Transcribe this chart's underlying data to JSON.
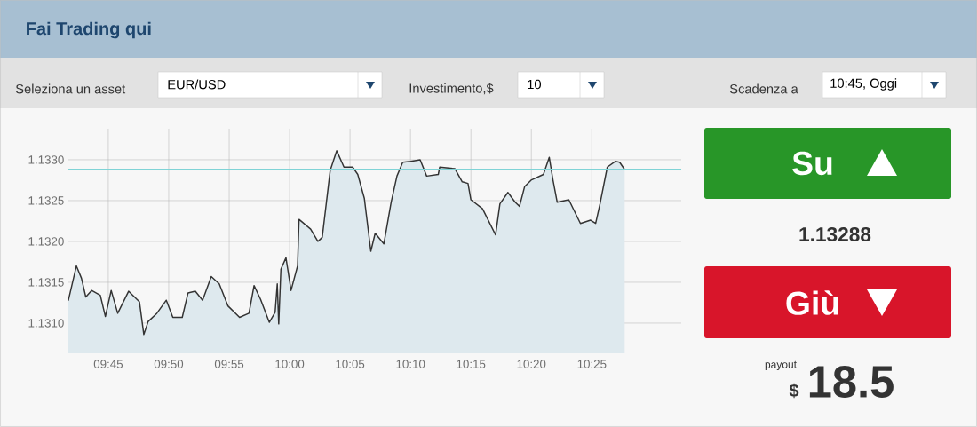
{
  "chart_data": {
    "type": "area",
    "title": "Fai Trading qui",
    "x": [
      9.695,
      9.706,
      9.713,
      9.719,
      9.727,
      9.739,
      9.746,
      9.754,
      9.763,
      9.778,
      9.793,
      9.799,
      9.805,
      9.817,
      9.83,
      9.839,
      9.852,
      9.86,
      9.87,
      9.88,
      9.892,
      9.903,
      9.915,
      9.931,
      9.944,
      9.951,
      9.96,
      9.972,
      9.98,
      9.983,
      9.985,
      9.988,
      9.995,
      10.002,
      10.011,
      10.013,
      10.021,
      10.029,
      10.039,
      10.045,
      10.056,
      10.065,
      10.075,
      10.087,
      10.094,
      10.103,
      10.112,
      10.118,
      10.13,
      10.14,
      10.148,
      10.156,
      10.167,
      10.18,
      10.189,
      10.205,
      10.207,
      10.228,
      10.238,
      10.246,
      10.25,
      10.266,
      10.284,
      10.29,
      10.301,
      10.311,
      10.317,
      10.324,
      10.333,
      10.35,
      10.358,
      10.363,
      10.369,
      10.385,
      10.401,
      10.415,
      10.422,
      10.428,
      10.438,
      10.449,
      10.455,
      10.462
    ],
    "values": [
      1.13128,
      1.1317,
      1.13155,
      1.13132,
      1.1314,
      1.13134,
      1.13108,
      1.1314,
      1.13112,
      1.13139,
      1.13126,
      1.13086,
      1.13102,
      1.13112,
      1.13128,
      1.13107,
      1.13107,
      1.13137,
      1.13139,
      1.13128,
      1.13157,
      1.13148,
      1.13121,
      1.13107,
      1.13112,
      1.13146,
      1.13129,
      1.13101,
      1.13113,
      1.13148,
      1.13099,
      1.13166,
      1.1318,
      1.1314,
      1.1317,
      1.13227,
      1.13221,
      1.13215,
      1.132,
      1.13205,
      1.13287,
      1.13311,
      1.13291,
      1.13291,
      1.13282,
      1.13253,
      1.13188,
      1.1321,
      1.13197,
      1.13248,
      1.1328,
      1.13297,
      1.13298,
      1.133,
      1.1328,
      1.13282,
      1.13291,
      1.13289,
      1.13273,
      1.13271,
      1.13251,
      1.1324,
      1.13208,
      1.13246,
      1.1326,
      1.13248,
      1.13243,
      1.13267,
      1.13275,
      1.13282,
      1.13303,
      1.13276,
      1.13248,
      1.13251,
      1.13222,
      1.13226,
      1.13222,
      1.13246,
      1.13291,
      1.13298,
      1.13297,
      1.13288
    ],
    "color": "#333333",
    "xlim": [
      9.695,
      10.54
    ],
    "ylim": [
      1.13063,
      1.13338
    ],
    "xticks": [
      {
        "value": 9.75,
        "label": "09:45"
      },
      {
        "value": 9.8333,
        "label": "09:50"
      },
      {
        "value": 9.9167,
        "label": "09:55"
      },
      {
        "value": 10.0,
        "label": "10:00"
      },
      {
        "value": 10.0833,
        "label": "10:05"
      },
      {
        "value": 10.1667,
        "label": "10:10"
      },
      {
        "value": 10.25,
        "label": "10:15"
      },
      {
        "value": 10.3333,
        "label": "10:20"
      },
      {
        "value": 10.4167,
        "label": "10:25"
      }
    ],
    "yticks": [
      {
        "value": 1.131,
        "label": "1.1310"
      },
      {
        "value": 1.1315,
        "label": "1.1315"
      },
      {
        "value": 1.132,
        "label": "1.1320"
      },
      {
        "value": 1.1325,
        "label": "1.1325"
      },
      {
        "value": 1.133,
        "label": "1.1330"
      }
    ],
    "grid": true,
    "ref_lines": [
      {
        "axis": "y",
        "value": 1.13288,
        "color": "#7fd3d6"
      }
    ],
    "annotations": [
      "Seleziona un asset",
      "EUR/USD",
      "Investimento,$",
      "10",
      "Scadenza a",
      "10:45, Oggi",
      "Su",
      "1.13288",
      "Giù",
      "payout",
      "$",
      "18.5"
    ]
  }
}
